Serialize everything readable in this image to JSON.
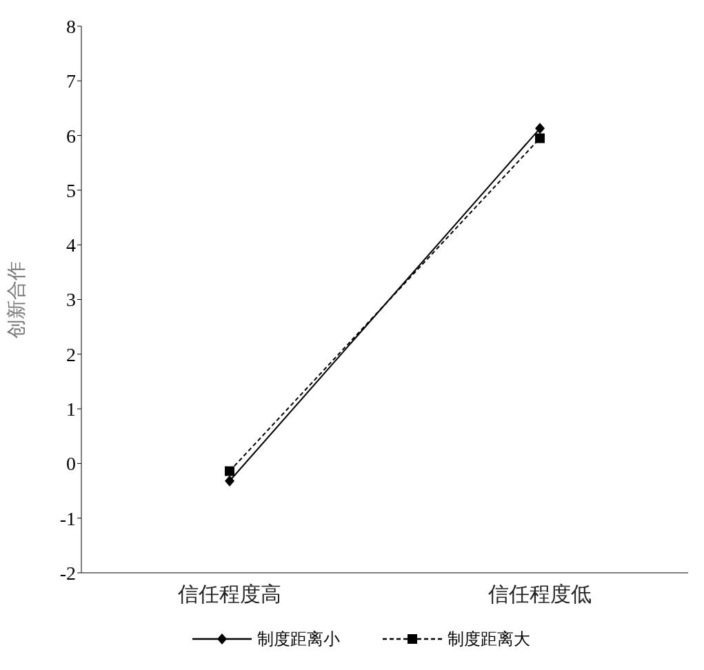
{
  "chart_data": {
    "type": "line",
    "ylabel": "创新合作",
    "categories": [
      "信任程度高",
      "信任程度低"
    ],
    "series": [
      {
        "name": "制度距离小",
        "color": "#000000",
        "values": [
          -0.32,
          6.13
        ],
        "marker": "diamond",
        "line_style": "solid"
      },
      {
        "name": "制度距离大",
        "color": "#000000",
        "values": [
          -0.14,
          5.95
        ],
        "marker": "square",
        "line_style": "dashed"
      }
    ],
    "ylim": [
      -2,
      8
    ],
    "yticks": [
      -2,
      -1,
      0,
      1,
      2,
      3,
      4,
      5,
      6,
      7,
      8
    ],
    "grid": false,
    "legend": "bottom"
  }
}
